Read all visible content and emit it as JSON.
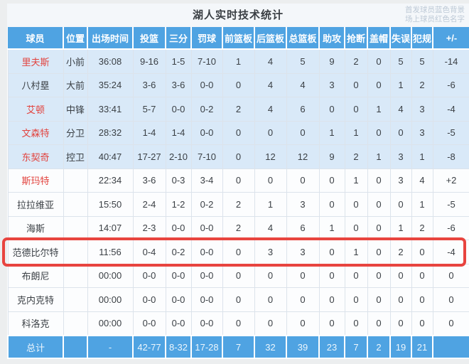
{
  "page": {
    "title": "湖人实时技术统计",
    "legend_line1": "首发球员蓝色背景",
    "legend_line2": "场上球员红色名字"
  },
  "colors": {
    "header_blue": "#4fa3e2",
    "starter_row_bg": "#d9e9f8",
    "on_court_name_red": "#e2433e",
    "highlight_border_red": "#e8443f"
  },
  "table": {
    "columns": [
      "球员",
      "位置",
      "出场时间",
      "投篮",
      "三分",
      "罚球",
      "前篮板",
      "后篮板",
      "总篮板",
      "助攻",
      "抢断",
      "盖帽",
      "失误",
      "犯规",
      "+/-"
    ],
    "rows": [
      {
        "cells": [
          "里夫斯",
          "小前",
          "36:08",
          "9-16",
          "1-5",
          "7-10",
          "1",
          "4",
          "5",
          "9",
          "2",
          "0",
          "5",
          "5",
          "-14"
        ],
        "starter": true,
        "on_court": true,
        "highlighted": false,
        "total": false
      },
      {
        "cells": [
          "八村塁",
          "大前",
          "35:24",
          "3-6",
          "3-6",
          "0-0",
          "0",
          "4",
          "4",
          "3",
          "0",
          "0",
          "1",
          "2",
          "-6"
        ],
        "starter": true,
        "on_court": false,
        "highlighted": false,
        "total": false
      },
      {
        "cells": [
          "艾顿",
          "中锋",
          "33:41",
          "5-7",
          "0-0",
          "0-2",
          "2",
          "4",
          "6",
          "0",
          "0",
          "1",
          "4",
          "3",
          "-4"
        ],
        "starter": true,
        "on_court": true,
        "highlighted": false,
        "total": false
      },
      {
        "cells": [
          "文森特",
          "分卫",
          "28:32",
          "1-4",
          "1-4",
          "0-0",
          "0",
          "0",
          "0",
          "1",
          "1",
          "0",
          "0",
          "3",
          "-5"
        ],
        "starter": true,
        "on_court": true,
        "highlighted": false,
        "total": false
      },
      {
        "cells": [
          "东契奇",
          "控卫",
          "40:47",
          "17-27",
          "2-10",
          "7-10",
          "0",
          "12",
          "12",
          "9",
          "2",
          "1",
          "3",
          "1",
          "-8"
        ],
        "starter": true,
        "on_court": true,
        "highlighted": false,
        "total": false
      },
      {
        "cells": [
          "斯玛特",
          "",
          "22:34",
          "3-6",
          "0-3",
          "3-4",
          "0",
          "0",
          "0",
          "0",
          "1",
          "0",
          "3",
          "4",
          "+2"
        ],
        "starter": false,
        "on_court": true,
        "highlighted": false,
        "total": false
      },
      {
        "cells": [
          "拉拉维亚",
          "",
          "15:50",
          "2-4",
          "1-2",
          "0-2",
          "2",
          "1",
          "3",
          "0",
          "0",
          "0",
          "0",
          "1",
          "-5"
        ],
        "starter": false,
        "on_court": false,
        "highlighted": false,
        "total": false
      },
      {
        "cells": [
          "海斯",
          "",
          "14:07",
          "2-3",
          "0-0",
          "0-0",
          "2",
          "4",
          "6",
          "1",
          "0",
          "0",
          "1",
          "2",
          "-6"
        ],
        "starter": false,
        "on_court": false,
        "highlighted": false,
        "total": false
      },
      {
        "cells": [
          "范德比尔特",
          "",
          "11:56",
          "0-4",
          "0-2",
          "0-0",
          "0",
          "3",
          "3",
          "0",
          "1",
          "0",
          "2",
          "0",
          "-4"
        ],
        "starter": false,
        "on_court": false,
        "highlighted": true,
        "total": false
      },
      {
        "cells": [
          "布朗尼",
          "",
          "00:00",
          "0-0",
          "0-0",
          "0-0",
          "0",
          "0",
          "0",
          "0",
          "0",
          "0",
          "0",
          "0",
          "0"
        ],
        "starter": false,
        "on_court": false,
        "highlighted": false,
        "total": false
      },
      {
        "cells": [
          "克内克特",
          "",
          "00:00",
          "0-0",
          "0-0",
          "0-0",
          "0",
          "0",
          "0",
          "0",
          "0",
          "0",
          "0",
          "0",
          "0"
        ],
        "starter": false,
        "on_court": false,
        "highlighted": false,
        "total": false
      },
      {
        "cells": [
          "科洛克",
          "",
          "00:00",
          "0-0",
          "0-0",
          "0-0",
          "0",
          "0",
          "0",
          "0",
          "0",
          "0",
          "0",
          "0",
          "0"
        ],
        "starter": false,
        "on_court": false,
        "highlighted": false,
        "total": false
      },
      {
        "cells": [
          "总计",
          "",
          "-",
          "42-77",
          "8-32",
          "17-28",
          "7",
          "32",
          "39",
          "23",
          "7",
          "2",
          "19",
          "21",
          ""
        ],
        "starter": false,
        "on_court": false,
        "highlighted": false,
        "total": true
      }
    ]
  }
}
